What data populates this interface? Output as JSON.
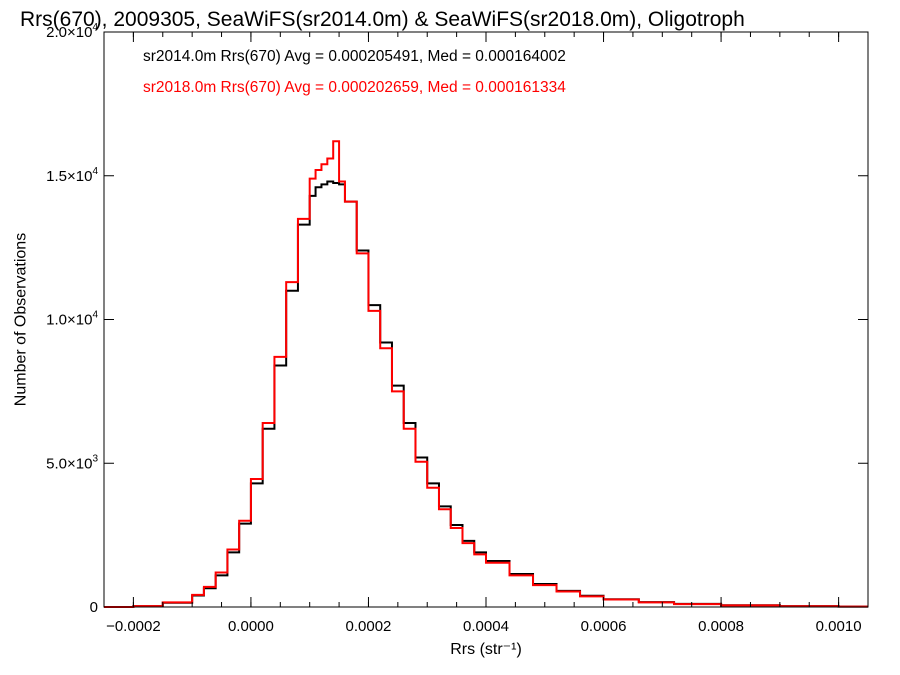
{
  "chart_data": {
    "type": "line",
    "style": "step",
    "title": "Rrs(670), 2009305, SeaWiFS(sr2014.0m) & SeaWiFS(sr2018.0m), Oligotroph",
    "xlabel": "Rrs (str⁻¹)",
    "ylabel": "Number of Observations",
    "xlim": [
      -0.00025,
      0.00105
    ],
    "ylim": [
      0,
      20000
    ],
    "xticks": [
      -0.0002,
      0.0,
      0.0002,
      0.0004,
      0.0006,
      0.0008,
      0.001
    ],
    "xtick_labels": [
      "−0.0002",
      "0.0000",
      "0.0002",
      "0.0004",
      "0.0006",
      "0.0008",
      "0.0010"
    ],
    "yticks": [
      0,
      5000,
      10000,
      15000,
      20000
    ],
    "ytick_labels": [
      {
        "base": "0",
        "exp": ""
      },
      {
        "base": "5.0×10",
        "exp": "3"
      },
      {
        "base": "1.0×10",
        "exp": "4"
      },
      {
        "base": "1.5×10",
        "exp": "4"
      },
      {
        "base": "2.0×10",
        "exp": "4"
      }
    ],
    "grid": false,
    "series": [
      {
        "name": "sr2014.0m",
        "color": "#000000",
        "annotation": "sr2014.0m Rrs(670) Avg = 0.000205491, Med = 0.000164002",
        "x": [
          -0.00025,
          -0.0002,
          -0.00015,
          -0.0001,
          -8e-05,
          -6e-05,
          -4e-05,
          -2e-05,
          0.0,
          2e-05,
          4e-05,
          6e-05,
          8e-05,
          0.0001,
          0.00011,
          0.00012,
          0.00013,
          0.00014,
          0.00015,
          0.00016,
          0.00018,
          0.0002,
          0.00022,
          0.00024,
          0.00026,
          0.00028,
          0.0003,
          0.00032,
          0.00034,
          0.00036,
          0.00038,
          0.0004,
          0.00044,
          0.00048,
          0.00052,
          0.00056,
          0.0006,
          0.00066,
          0.00072,
          0.0008,
          0.0009,
          0.001,
          0.00105
        ],
        "y": [
          0,
          30,
          150,
          400,
          650,
          1100,
          1900,
          2900,
          4300,
          6200,
          8400,
          11000,
          13300,
          14300,
          14600,
          14700,
          14800,
          14750,
          14700,
          14100,
          12400,
          10500,
          9200,
          7700,
          6400,
          5200,
          4300,
          3500,
          2850,
          2300,
          1900,
          1600,
          1150,
          800,
          560,
          390,
          270,
          170,
          110,
          60,
          30,
          15,
          10
        ]
      },
      {
        "name": "sr2018.0m",
        "color": "#ff0000",
        "annotation": "sr2018.0m Rrs(670) Avg = 0.000202659, Med = 0.000161334",
        "x": [
          -0.00025,
          -0.0002,
          -0.00015,
          -0.0001,
          -8e-05,
          -6e-05,
          -4e-05,
          -2e-05,
          0.0,
          2e-05,
          4e-05,
          6e-05,
          8e-05,
          0.0001,
          0.00011,
          0.00012,
          0.00013,
          0.00014,
          0.00015,
          0.00016,
          0.00018,
          0.0002,
          0.00022,
          0.00024,
          0.00026,
          0.00028,
          0.0003,
          0.00032,
          0.00034,
          0.00036,
          0.00038,
          0.0004,
          0.00044,
          0.00048,
          0.00052,
          0.00056,
          0.0006,
          0.00066,
          0.00072,
          0.0008,
          0.0009,
          0.001,
          0.00105
        ],
        "y": [
          0,
          30,
          160,
          420,
          700,
          1200,
          2000,
          3000,
          4450,
          6400,
          8700,
          11300,
          13500,
          14900,
          15200,
          15400,
          15600,
          16200,
          14800,
          14100,
          12300,
          10300,
          9000,
          7500,
          6200,
          5050,
          4150,
          3400,
          2750,
          2220,
          1830,
          1540,
          1100,
          760,
          540,
          370,
          260,
          160,
          100,
          55,
          28,
          13,
          8
        ]
      }
    ]
  }
}
